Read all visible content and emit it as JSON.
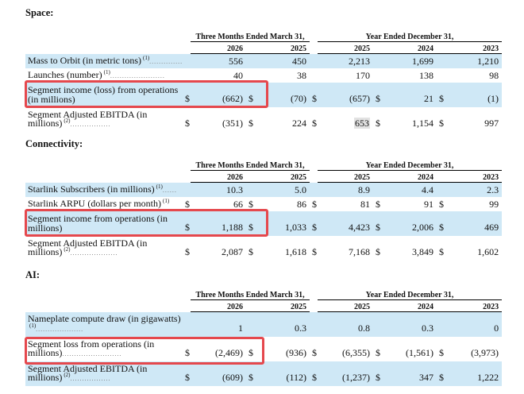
{
  "header_groups": [
    "Three Months Ended March 31,",
    "Year Ended December 31,"
  ],
  "years": [
    "2026",
    "2025",
    "2025",
    "2024",
    "2023"
  ],
  "highlight_color": "#e5484d",
  "shade_color": "#cfe8f6",
  "sections": {
    "space": {
      "title": "Space:",
      "rows": [
        {
          "label": "Mass to Orbit (in metric tons)",
          "sup": "(1)",
          "dots": "..............",
          "v": [
            "556",
            "450",
            "2,213",
            "1,699",
            "1,210"
          ]
        },
        {
          "label": "Launches (number)",
          "sup": "(1)",
          "dots": ".......................",
          "v": [
            "40",
            "38",
            "170",
            "138",
            "98"
          ]
        },
        {
          "label": "Segment income (loss) from operations (in millions)",
          "dots": "",
          "d": [
            "$",
            "$",
            "$",
            "$",
            "$"
          ],
          "v": [
            "(662)",
            "(70)",
            "(657)",
            "21",
            "(1)"
          ]
        },
        {
          "label": "Segment Adjusted EBITDA (in millions)",
          "sup": "(2)",
          "dots": ".................",
          "d": [
            "$",
            "$",
            "$",
            "$",
            "$"
          ],
          "v": [
            "(351)",
            "224",
            "653",
            "1,154",
            "997"
          ]
        }
      ]
    },
    "connectivity": {
      "title": "Connectivity:",
      "rows": [
        {
          "label": "Starlink Subscribers (in millions)",
          "sup": "(1)",
          "dots": "......",
          "v": [
            "10.3",
            "5.0",
            "8.9",
            "4.4",
            "2.3"
          ]
        },
        {
          "label": "Starlink ARPU (dollars per month)",
          "sup": "(1)",
          "dots": "",
          "d": [
            "$",
            "$",
            "$",
            "$",
            "$"
          ],
          "v": [
            "66",
            "86",
            "81",
            "91",
            "99"
          ]
        },
        {
          "label": "Segment income from operations (in millions)",
          "dots": "",
          "d": [
            "$",
            "$",
            "$",
            "$",
            "$"
          ],
          "v": [
            "1,188",
            "1,033",
            "4,423",
            "2,006",
            "469"
          ]
        },
        {
          "label": "Segment Adjusted EBITDA (in millions)",
          "sup": "(2)",
          "dots": "....................",
          "d": [
            "$",
            "$",
            "$",
            "$",
            "$"
          ],
          "v": [
            "2,087",
            "1,618",
            "7,168",
            "3,849",
            "1,602"
          ]
        }
      ]
    },
    "ai": {
      "title": "AI:",
      "rows": [
        {
          "label": "Nameplate compute draw (in gigawatts)",
          "sup": "(1)",
          "dots": "....................",
          "v": [
            "1",
            "0.3",
            "0.8",
            "0.3",
            "0"
          ]
        },
        {
          "label": "Segment loss from operations (in millions)",
          "dots": ".........................",
          "d": [
            "$",
            "$",
            "$",
            "$",
            "$"
          ],
          "v": [
            "(2,469)",
            "(936)",
            "(6,355)",
            "(1,561)",
            "(3,973)"
          ]
        },
        {
          "label": "Segment Adjusted EBITDA (in millions)",
          "sup": "(2)",
          "dots": ".................",
          "d": [
            "$",
            "$",
            "$",
            "$",
            "$"
          ],
          "v": [
            "(609)",
            "(112)",
            "(1,237)",
            "347",
            "1,222"
          ]
        }
      ]
    }
  }
}
